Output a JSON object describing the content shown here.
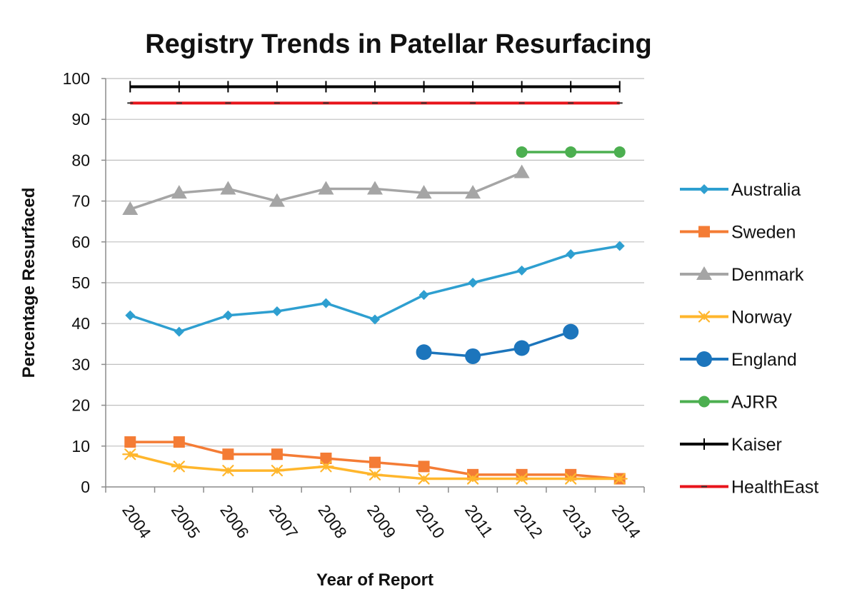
{
  "chart_data": {
    "type": "line",
    "title": "Registry Trends in Patellar Resurfacing",
    "xlabel": "Year of Report",
    "ylabel": "Percentage Resurfaced",
    "categories": [
      "2004",
      "2005",
      "2006",
      "2007",
      "2008",
      "2009",
      "2010",
      "2011",
      "2012",
      "2013",
      "2014"
    ],
    "ylim": [
      0,
      100
    ],
    "yticks": [
      "0",
      "10",
      "20",
      "30",
      "40",
      "50",
      "60",
      "70",
      "80",
      "90",
      "100"
    ],
    "grid": "horizontal",
    "legend_position": "right",
    "series": [
      {
        "name": "Australia",
        "color": "#2E9FD0",
        "marker": "diamond",
        "values": [
          42,
          38,
          42,
          43,
          45,
          41,
          47,
          50,
          53,
          57,
          59
        ]
      },
      {
        "name": "Sweden",
        "color": "#F47C35",
        "marker": "square",
        "values": [
          11,
          11,
          8,
          8,
          7,
          6,
          5,
          3,
          3,
          3,
          2
        ]
      },
      {
        "name": "Denmark",
        "color": "#A5A5A5",
        "marker": "triangle",
        "values": [
          68,
          72,
          73,
          70,
          73,
          73,
          72,
          72,
          77,
          null,
          null
        ]
      },
      {
        "name": "Norway",
        "color": "#FFB62C",
        "marker": "asterisk",
        "values": [
          8,
          5,
          4,
          4,
          5,
          3,
          2,
          2,
          2,
          2,
          2
        ]
      },
      {
        "name": "England",
        "color": "#1C75BC",
        "marker": "circle-large",
        "values": [
          null,
          null,
          null,
          null,
          null,
          null,
          33,
          32,
          34,
          38,
          null
        ]
      },
      {
        "name": "AJRR",
        "color": "#4CAF50",
        "marker": "circle",
        "values": [
          null,
          null,
          null,
          null,
          null,
          null,
          null,
          null,
          82,
          82,
          82
        ]
      },
      {
        "name": "Kaiser",
        "color": "#000000",
        "marker": "plus",
        "values": [
          98,
          98,
          98,
          98,
          98,
          98,
          98,
          98,
          98,
          98,
          98
        ]
      },
      {
        "name": "HealthEast",
        "color": "#E8141B",
        "marker": "dash",
        "values": [
          94,
          94,
          94,
          94,
          94,
          94,
          94,
          94,
          94,
          94,
          94
        ]
      }
    ]
  }
}
